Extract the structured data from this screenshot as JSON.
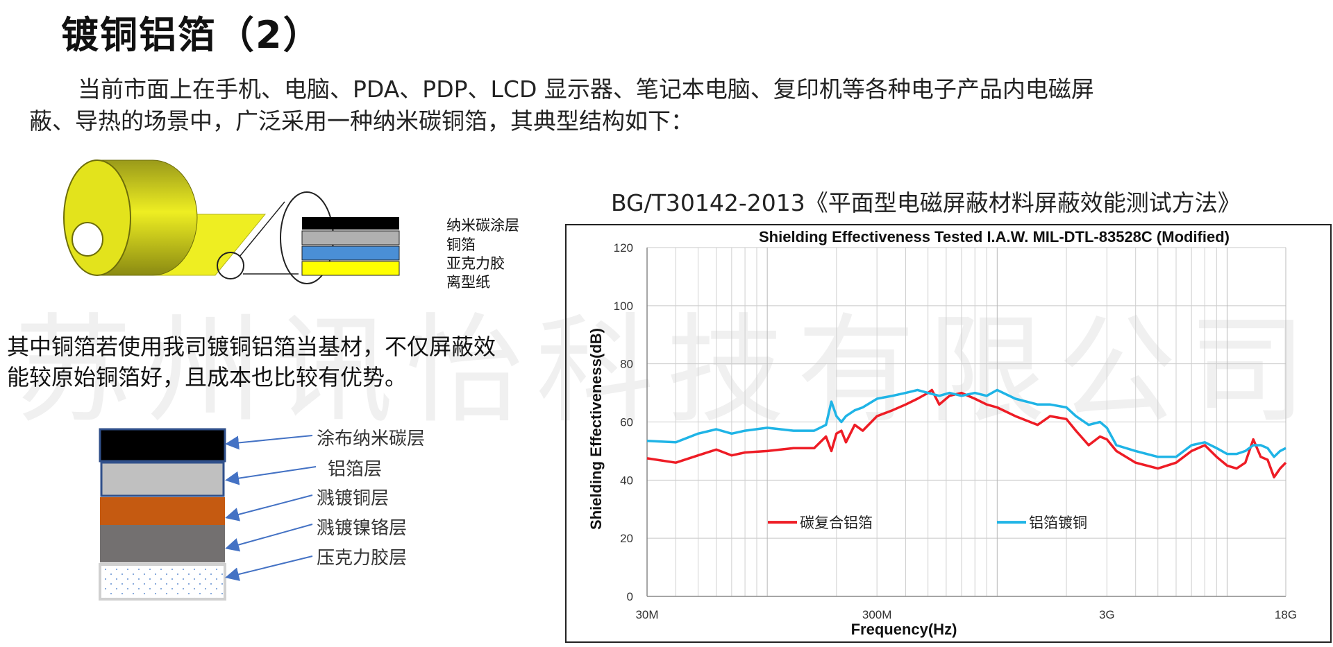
{
  "header": {
    "title": "镀铜铝箔（2）"
  },
  "intro": {
    "line1": "当前市面上在手机、电脑、PDA、PDP、LCD 显示器、笔记本电脑、复印机等各种电子产品内电磁屏",
    "line2": "蔽、导热的场景中，广泛采用一种纳米碳铜箔，其典型结构如下："
  },
  "structure1": {
    "labels": [
      "纳米碳涂层",
      "铜箔",
      "亚克力胶",
      "离型纸"
    ]
  },
  "description": "其中铜箔若使用我司镀铜铝箔当基材，不仅屏蔽效能较原始铜箔好，且成本也比较有优势。",
  "structure2": {
    "labels": [
      "涂布纳米碳层",
      "铝箔层",
      "溅镀铜层",
      "溅镀镍铬层",
      "压克力胶层"
    ]
  },
  "watermark": "苏州讯怡科技有限公司",
  "standard_title": "BG/T30142-2013《平面型电磁屏蔽材料屏蔽效能测试方法》",
  "colors": {
    "red_series": "#ee1c25",
    "blue_series": "#1fb4e6",
    "yellow_film": "#eeee22"
  },
  "chart_data": {
    "type": "line",
    "title": "Shielding Effectiveness Tested I.A.W. MIL-DTL-83528C (Modified)",
    "xlabel": "Frequency(Hz)",
    "ylabel": "Shielding Effectiveness(dB)",
    "x_scale": "log",
    "x_ticks": [
      "30M",
      "300M",
      "3G",
      "18G"
    ],
    "y_ticks": [
      0,
      20,
      40,
      60,
      80,
      100,
      120
    ],
    "ylim": [
      0,
      120
    ],
    "grid": true,
    "legend_position": "inside-bottom",
    "series": [
      {
        "name": "碳复合铝箔",
        "color": "#ee1c25",
        "points": [
          [
            "30M",
            47.5
          ],
          [
            "40M",
            46
          ],
          [
            "50M",
            48.5
          ],
          [
            "60M",
            50.5
          ],
          [
            "70M",
            48.5
          ],
          [
            "80M",
            49.5
          ],
          [
            "100M",
            50
          ],
          [
            "130M",
            51
          ],
          [
            "160M",
            51
          ],
          [
            "180M",
            55
          ],
          [
            "190M",
            50
          ],
          [
            "200M",
            56
          ],
          [
            "210M",
            57
          ],
          [
            "220M",
            53
          ],
          [
            "240M",
            59
          ],
          [
            "260M",
            57
          ],
          [
            "300M",
            62
          ],
          [
            "350M",
            64
          ],
          [
            "400M",
            66
          ],
          [
            "450M",
            68
          ],
          [
            "500M",
            70
          ],
          [
            "520M",
            71
          ],
          [
            "560M",
            66
          ],
          [
            "620M",
            69
          ],
          [
            "700M",
            70
          ],
          [
            "800M",
            68
          ],
          [
            "900M",
            66
          ],
          [
            "1G",
            65
          ],
          [
            "1.2G",
            62
          ],
          [
            "1.5G",
            59
          ],
          [
            "1.7G",
            62
          ],
          [
            "2G",
            61
          ],
          [
            "2.2G",
            57
          ],
          [
            "2.5G",
            52
          ],
          [
            "2.8G",
            55
          ],
          [
            "3G",
            54
          ],
          [
            "3.3G",
            50
          ],
          [
            "4G",
            46
          ],
          [
            "5G",
            44
          ],
          [
            "6G",
            46
          ],
          [
            "7G",
            50
          ],
          [
            "8G",
            52
          ],
          [
            "9G",
            48
          ],
          [
            "10G",
            45
          ],
          [
            "11G",
            44
          ],
          [
            "12G",
            46
          ],
          [
            "13G",
            54
          ],
          [
            "14G",
            48
          ],
          [
            "15G",
            47
          ],
          [
            "16G",
            41
          ],
          [
            "17G",
            44
          ],
          [
            "18G",
            46
          ]
        ]
      },
      {
        "name": "铝箔镀铜",
        "color": "#1fb4e6",
        "points": [
          [
            "30M",
            53.5
          ],
          [
            "40M",
            53
          ],
          [
            "50M",
            56
          ],
          [
            "60M",
            57.5
          ],
          [
            "70M",
            56
          ],
          [
            "80M",
            57
          ],
          [
            "100M",
            58
          ],
          [
            "130M",
            57
          ],
          [
            "160M",
            57
          ],
          [
            "180M",
            59
          ],
          [
            "190M",
            67
          ],
          [
            "200M",
            62
          ],
          [
            "210M",
            60
          ],
          [
            "220M",
            62
          ],
          [
            "240M",
            64
          ],
          [
            "260M",
            65
          ],
          [
            "300M",
            68
          ],
          [
            "350M",
            69
          ],
          [
            "400M",
            70
          ],
          [
            "450M",
            71
          ],
          [
            "500M",
            70
          ],
          [
            "560M",
            69
          ],
          [
            "620M",
            70
          ],
          [
            "700M",
            69
          ],
          [
            "800M",
            70
          ],
          [
            "900M",
            69
          ],
          [
            "1G",
            71
          ],
          [
            "1.2G",
            68
          ],
          [
            "1.5G",
            66
          ],
          [
            "1.7G",
            66
          ],
          [
            "2G",
            65
          ],
          [
            "2.2G",
            62
          ],
          [
            "2.5G",
            59
          ],
          [
            "2.8G",
            60
          ],
          [
            "3G",
            58
          ],
          [
            "3.3G",
            52
          ],
          [
            "4G",
            50
          ],
          [
            "5G",
            48
          ],
          [
            "6G",
            48
          ],
          [
            "7G",
            52
          ],
          [
            "8G",
            53
          ],
          [
            "9G",
            51
          ],
          [
            "10G",
            49
          ],
          [
            "11G",
            49
          ],
          [
            "12G",
            50
          ],
          [
            "13G",
            52
          ],
          [
            "14G",
            52
          ],
          [
            "15G",
            51
          ],
          [
            "16G",
            48
          ],
          [
            "17G",
            50
          ],
          [
            "18G",
            51
          ]
        ]
      }
    ]
  }
}
